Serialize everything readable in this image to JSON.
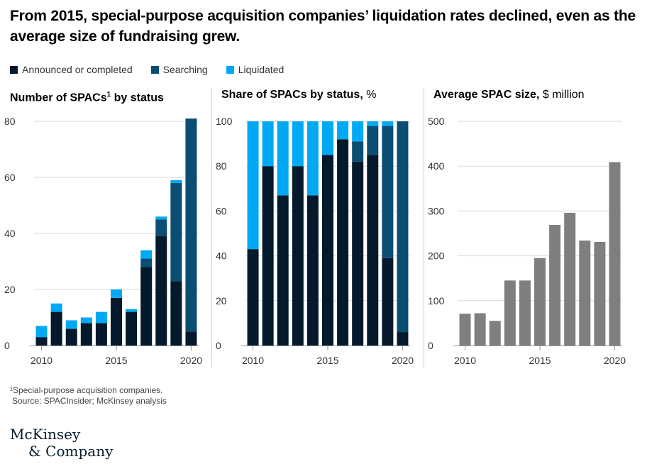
{
  "title": "From 2015, special-purpose acquisition companies’ liquidation rates declined, even as the average size of fundraising grew.",
  "colors": {
    "announced": "#041a2c",
    "searching": "#0b4d73",
    "liquidated": "#00a9f4",
    "average": "#7f7f7f",
    "grid": "#d9d9d9",
    "axis": "#9a9a9a",
    "tick_text": "#333333"
  },
  "legend": [
    {
      "label": "Announced or completed",
      "color_key": "announced"
    },
    {
      "label": "Searching",
      "color_key": "searching"
    },
    {
      "label": "Liquidated",
      "color_key": "liquidated"
    }
  ],
  "panels": [
    {
      "title_bold": "Number of SPACs",
      "title_sup": "1",
      "title_bold_after": " by status",
      "title_regular": ""
    },
    {
      "title_bold": "Share of SPACs by status,",
      "title_sup": "",
      "title_bold_after": "",
      "title_regular": " %"
    },
    {
      "title_bold": "Average SPAC size,",
      "title_sup": "",
      "title_bold_after": "",
      "title_regular": " $ million"
    }
  ],
  "chart_data": [
    {
      "type": "bar",
      "stacked": true,
      "x": [
        2010,
        2011,
        2012,
        2013,
        2014,
        2015,
        2016,
        2017,
        2018,
        2019,
        2020
      ],
      "series": [
        {
          "name": "Announced or completed",
          "values": [
            3,
            12,
            6,
            8,
            8,
            17,
            12,
            28,
            39,
            23,
            5
          ]
        },
        {
          "name": "Searching",
          "values": [
            0,
            0,
            0,
            0,
            0,
            0,
            0,
            3,
            6,
            35,
            76
          ]
        },
        {
          "name": "Liquidated",
          "values": [
            4,
            3,
            3,
            2,
            4,
            3,
            1,
            3,
            1,
            1,
            0
          ]
        }
      ],
      "ylim": [
        0,
        80
      ],
      "yticks": [
        "0",
        "20",
        "40",
        "60",
        "80"
      ],
      "xticks": [
        "2010",
        "2015",
        "2020"
      ],
      "grid": true
    },
    {
      "type": "bar",
      "stacked": true,
      "x": [
        2010,
        2011,
        2012,
        2013,
        2014,
        2015,
        2016,
        2017,
        2018,
        2019,
        2020
      ],
      "series": [
        {
          "name": "Announced or completed",
          "values": [
            43,
            80,
            67,
            80,
            67,
            85,
            92,
            82,
            85,
            39,
            6
          ]
        },
        {
          "name": "Searching",
          "values": [
            0,
            0,
            0,
            0,
            0,
            0,
            0,
            9,
            13,
            59,
            94
          ]
        },
        {
          "name": "Liquidated",
          "values": [
            57,
            20,
            33,
            20,
            33,
            15,
            8,
            9,
            2,
            2,
            0
          ]
        }
      ],
      "ylim": [
        0,
        100
      ],
      "yticks": [
        "0",
        "20",
        "40",
        "60",
        "80",
        "100"
      ],
      "xticks": [
        "2010",
        "2015",
        "2020"
      ],
      "grid": true
    },
    {
      "type": "bar",
      "stacked": false,
      "x": [
        2010,
        2011,
        2012,
        2013,
        2014,
        2015,
        2016,
        2017,
        2018,
        2019,
        2020
      ],
      "series": [
        {
          "name": "Average SPAC size",
          "values": [
            71,
            72,
            55,
            145,
            145,
            195,
            269,
            296,
            234,
            231,
            409
          ]
        }
      ],
      "ylim": [
        0,
        500
      ],
      "yticks": [
        "0",
        "100",
        "200",
        "300",
        "400",
        "500"
      ],
      "xticks": [
        "2010",
        "2015",
        "2020"
      ],
      "grid": true
    }
  ],
  "footnote": "¹Special-purpose acquisition companies.",
  "source": "Source: SPACInsider; McKinsey analysis",
  "logo": {
    "line1": "McKinsey",
    "line2": "& Company"
  }
}
